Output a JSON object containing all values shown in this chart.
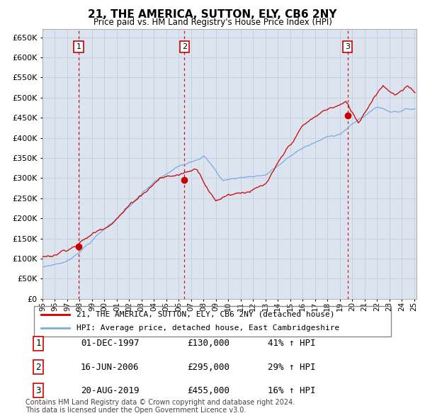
{
  "title": "21, THE AMERICA, SUTTON, ELY, CB6 2NY",
  "subtitle": "Price paid vs. HM Land Registry's House Price Index (HPI)",
  "ytick_values": [
    0,
    50000,
    100000,
    150000,
    200000,
    250000,
    300000,
    350000,
    400000,
    450000,
    500000,
    550000,
    600000,
    650000
  ],
  "ylim": [
    0,
    670000
  ],
  "legend_line1": "21, THE AMERICA, SUTTON, ELY, CB6 2NY (detached house)",
  "legend_line2": "HPI: Average price, detached house, East Cambridgeshire",
  "sale1_date": "01-DEC-1997",
  "sale1_price": 130000,
  "sale1_hpi": "41% ↑ HPI",
  "sale1_year": 1997.92,
  "sale2_date": "16-JUN-2006",
  "sale2_price": 295000,
  "sale2_hpi": "29% ↑ HPI",
  "sale2_year": 2006.46,
  "sale3_date": "20-AUG-2019",
  "sale3_price": 455000,
  "sale3_hpi": "16% ↑ HPI",
  "sale3_year": 2019.63,
  "footer1": "Contains HM Land Registry data © Crown copyright and database right 2024.",
  "footer2": "This data is licensed under the Open Government Licence v3.0.",
  "hpi_color": "#7aacdc",
  "price_color": "#cc0000",
  "sale_dot_color": "#cc0000",
  "vline_color": "#cc0000",
  "grid_color": "#c8d0e0",
  "bg_color": "#dce4f0"
}
